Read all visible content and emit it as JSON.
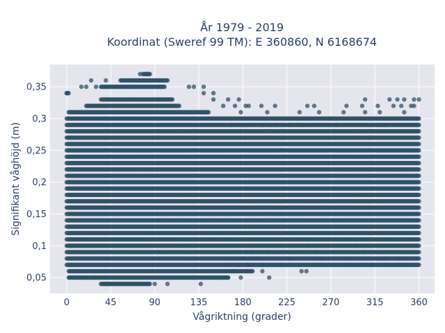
{
  "chart_data": {
    "type": "scatter",
    "title": [
      "År 1979 - 2019",
      "Koordinat (Sweref 99 TM): E 360860, N 6168674"
    ],
    "xlabel": "Vågriktning (grader)",
    "ylabel": "Signifikant våghöjd (m)",
    "xlim": [
      -17,
      376
    ],
    "ylim": [
      0.025,
      0.385
    ],
    "x_ticks": [
      0,
      45,
      90,
      135,
      180,
      225,
      270,
      315,
      360
    ],
    "x_tick_labels": [
      "0",
      "45",
      "90",
      "135",
      "180",
      "225",
      "270",
      "315",
      "360"
    ],
    "y_ticks": [
      0.05,
      0.1,
      0.15,
      0.2,
      0.25,
      0.3,
      0.35
    ],
    "y_tick_labels": [
      "0,05",
      "0,1",
      "0,15",
      "0,2",
      "0,25",
      "0,3",
      "0,35"
    ],
    "grid": true,
    "marker_color": "#2f5168",
    "plot_bg": "#e5e5ee",
    "y_levels": [
      0.04,
      0.05,
      0.06,
      0.07,
      0.08,
      0.09,
      0.1,
      0.11,
      0.12,
      0.13,
      0.14,
      0.15,
      0.16,
      0.17,
      0.18,
      0.19,
      0.2,
      0.21,
      0.22,
      0.23,
      0.24,
      0.25,
      0.26,
      0.27,
      0.28,
      0.29,
      0.3,
      0.31,
      0.32,
      0.33,
      0.34,
      0.35,
      0.36,
      0.37
    ],
    "dense_x_ranges": [
      [
        35,
        85
      ],
      [
        2,
        165
      ],
      [
        2,
        190
      ],
      [
        0,
        360
      ],
      [
        0,
        360
      ],
      [
        0,
        360
      ],
      [
        0,
        360
      ],
      [
        0,
        360
      ],
      [
        0,
        360
      ],
      [
        0,
        360
      ],
      [
        0,
        360
      ],
      [
        0,
        360
      ],
      [
        0,
        360
      ],
      [
        0,
        360
      ],
      [
        0,
        360
      ],
      [
        0,
        360
      ],
      [
        0,
        360
      ],
      [
        0,
        360
      ],
      [
        0,
        360
      ],
      [
        0,
        360
      ],
      [
        0,
        360
      ],
      [
        0,
        360
      ],
      [
        0,
        360
      ],
      [
        0,
        360
      ],
      [
        0,
        360
      ],
      [
        0,
        360
      ],
      [
        0,
        360
      ],
      [
        2,
        145
      ],
      [
        20,
        115
      ],
      [
        35,
        108
      ],
      [
        0,
        2
      ],
      [
        35,
        100
      ],
      [
        55,
        102
      ],
      [
        78,
        85
      ]
    ],
    "sparse_points": [
      [
        44,
        0.04
      ],
      [
        90,
        0.04
      ],
      [
        103,
        0.04
      ],
      [
        137,
        0.04
      ],
      [
        20,
        0.05
      ],
      [
        28,
        0.05
      ],
      [
        130,
        0.05
      ],
      [
        155,
        0.05
      ],
      [
        165,
        0.05
      ],
      [
        178,
        0.05
      ],
      [
        207,
        0.05
      ],
      [
        7,
        0.06
      ],
      [
        170,
        0.06
      ],
      [
        200,
        0.06
      ],
      [
        240,
        0.06
      ],
      [
        245,
        0.06
      ],
      [
        165,
        0.07
      ],
      [
        175,
        0.07
      ],
      [
        185,
        0.07
      ],
      [
        200,
        0.07
      ],
      [
        219,
        0.07
      ],
      [
        252,
        0.07
      ],
      [
        285,
        0.07
      ],
      [
        300,
        0.07
      ],
      [
        312,
        0.07
      ],
      [
        328,
        0.07
      ],
      [
        336,
        0.07
      ],
      [
        343,
        0.07
      ],
      [
        180,
        0.08
      ],
      [
        195,
        0.08
      ],
      [
        228,
        0.08
      ],
      [
        260,
        0.08
      ],
      [
        287,
        0.08
      ],
      [
        325,
        0.08
      ],
      [
        340,
        0.08
      ],
      [
        190,
        0.09
      ],
      [
        205,
        0.09
      ],
      [
        240,
        0.09
      ],
      [
        255,
        0.09
      ],
      [
        275,
        0.09
      ],
      [
        305,
        0.09
      ],
      [
        330,
        0.09
      ],
      [
        210,
        0.1
      ],
      [
        228,
        0.1
      ],
      [
        247,
        0.1
      ],
      [
        260,
        0.1
      ],
      [
        295,
        0.1
      ],
      [
        318,
        0.1
      ],
      [
        168,
        0.29
      ],
      [
        180,
        0.29
      ],
      [
        200,
        0.29
      ],
      [
        208,
        0.29
      ],
      [
        213,
        0.29
      ],
      [
        228,
        0.29
      ],
      [
        240,
        0.29
      ],
      [
        276,
        0.29
      ],
      [
        292,
        0.29
      ],
      [
        318,
        0.29
      ],
      [
        325,
        0.29
      ],
      [
        195,
        0.3
      ],
      [
        215,
        0.3
      ],
      [
        235,
        0.3
      ],
      [
        250,
        0.3
      ],
      [
        270,
        0.3
      ],
      [
        300,
        0.3
      ],
      [
        330,
        0.3
      ],
      [
        178,
        0.31
      ],
      [
        205,
        0.31
      ],
      [
        238,
        0.31
      ],
      [
        258,
        0.31
      ],
      [
        283,
        0.31
      ],
      [
        305,
        0.31
      ],
      [
        320,
        0.31
      ],
      [
        345,
        0.31
      ],
      [
        160,
        0.32
      ],
      [
        172,
        0.32
      ],
      [
        183,
        0.32
      ],
      [
        186,
        0.32
      ],
      [
        199,
        0.32
      ],
      [
        213,
        0.32
      ],
      [
        246,
        0.32
      ],
      [
        253,
        0.32
      ],
      [
        286,
        0.32
      ],
      [
        302,
        0.32
      ],
      [
        318,
        0.32
      ],
      [
        334,
        0.32
      ],
      [
        342,
        0.32
      ],
      [
        352,
        0.32
      ],
      [
        355,
        0.32
      ],
      [
        150,
        0.33
      ],
      [
        165,
        0.33
      ],
      [
        176,
        0.33
      ],
      [
        330,
        0.33
      ],
      [
        338,
        0.33
      ],
      [
        345,
        0.33
      ],
      [
        140,
        0.34
      ],
      [
        150,
        0.34
      ],
      [
        305,
        0.33
      ],
      [
        355,
        0.33
      ],
      [
        360,
        0.33
      ],
      [
        0,
        0.34
      ],
      [
        15,
        0.35
      ],
      [
        20,
        0.35
      ],
      [
        30,
        0.35
      ],
      [
        125,
        0.35
      ],
      [
        130,
        0.35
      ],
      [
        140,
        0.35
      ],
      [
        25,
        0.36
      ],
      [
        40,
        0.36
      ],
      [
        95,
        0.36
      ],
      [
        103,
        0.36
      ],
      [
        75,
        0.37
      ],
      [
        82,
        0.37
      ]
    ]
  }
}
